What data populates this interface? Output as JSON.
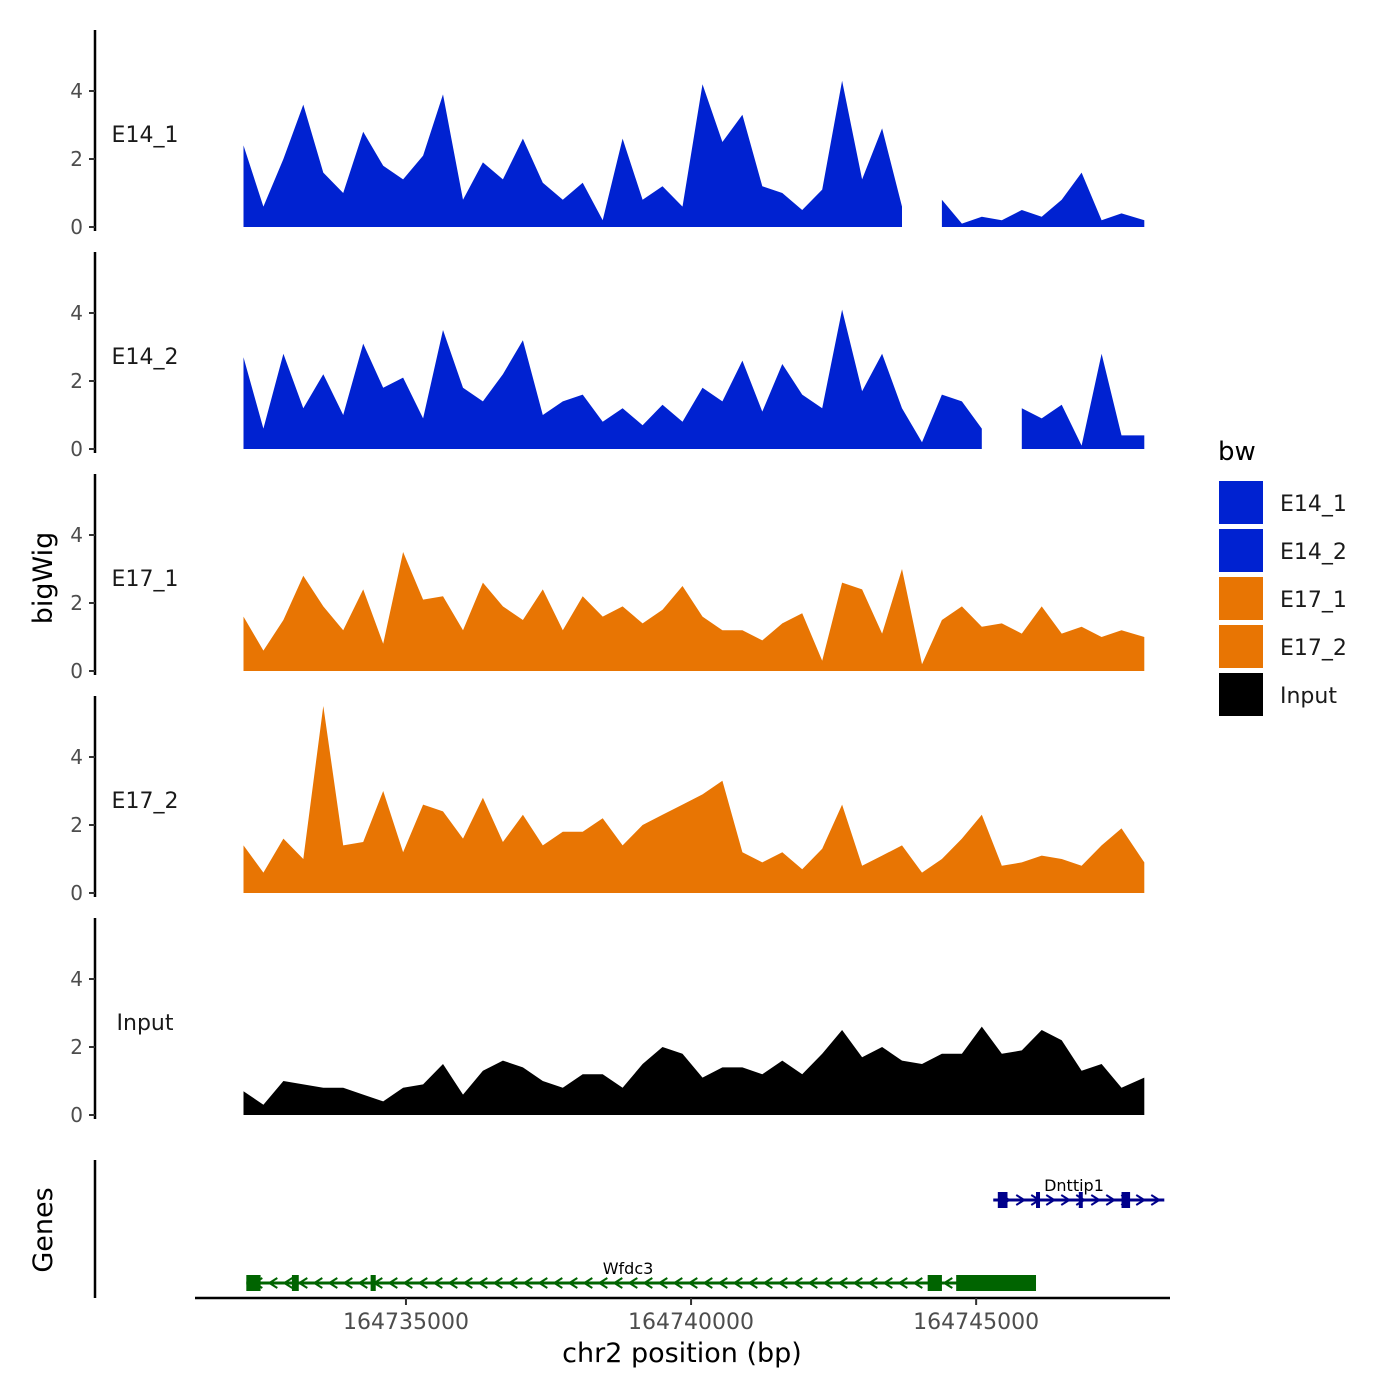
{
  "chart_data": {
    "type": "area",
    "title": "",
    "ylabel": "bigWig",
    "xlabel": "chr2 position (bp)",
    "xlim": [
      164731300,
      164748400
    ],
    "ylim": [
      0,
      5.8
    ],
    "y_ticks": [
      0,
      2,
      4
    ],
    "x_ticks": [
      164735000,
      164740000,
      164745000
    ],
    "x_tick_labels": [
      "164735000",
      "164740000",
      "164745000"
    ],
    "legend": {
      "title": "bw",
      "position": "right",
      "entries": [
        {
          "label": "E14_1",
          "color": "#0022d1"
        },
        {
          "label": "E14_2",
          "color": "#0022d1"
        },
        {
          "label": "E17_1",
          "color": "#e87503"
        },
        {
          "label": "E17_2",
          "color": "#e87503"
        },
        {
          "label": "Input",
          "color": "#000000"
        }
      ]
    },
    "x": [
      164732150,
      164732500,
      164732850,
      164733200,
      164733550,
      164733900,
      164734250,
      164734600,
      164734950,
      164735300,
      164735650,
      164736000,
      164736350,
      164736700,
      164737050,
      164737400,
      164737750,
      164738100,
      164738450,
      164738800,
      164739150,
      164739500,
      164739850,
      164740200,
      164740550,
      164740900,
      164741250,
      164741600,
      164741950,
      164742300,
      164742650,
      164743000,
      164743350,
      164743700,
      164744050,
      164744400,
      164744750,
      164745100,
      164745450,
      164745800,
      164746150,
      164746500,
      164746850,
      164747200,
      164747550,
      164747950
    ],
    "series": [
      {
        "name": "E14_1",
        "values": [
          2.4,
          0.6,
          2.0,
          3.6,
          1.6,
          1.0,
          2.8,
          1.8,
          1.4,
          2.1,
          3.9,
          0.8,
          1.9,
          1.4,
          2.6,
          1.3,
          0.8,
          1.3,
          0.2,
          2.6,
          0.8,
          1.2,
          0.6,
          4.2,
          2.5,
          3.3,
          1.2,
          1.0,
          0.5,
          1.1,
          4.3,
          1.4,
          2.9,
          0.6,
          null,
          0.8,
          0.1,
          0.3,
          0.2,
          0.5,
          0.3,
          0.8,
          1.6,
          0.2,
          0.4,
          0.2
        ]
      },
      {
        "name": "E14_2",
        "values": [
          2.7,
          0.6,
          2.8,
          1.2,
          2.2,
          1.0,
          3.1,
          1.8,
          2.1,
          0.9,
          3.5,
          1.8,
          1.4,
          2.2,
          3.2,
          1.0,
          1.4,
          1.6,
          0.8,
          1.2,
          0.7,
          1.3,
          0.8,
          1.8,
          1.4,
          2.6,
          1.1,
          2.5,
          1.6,
          1.2,
          4.1,
          1.7,
          2.8,
          1.2,
          0.2,
          1.6,
          1.4,
          0.6,
          null,
          1.2,
          0.9,
          1.3,
          0.1,
          2.8,
          0.4,
          0.4
        ]
      },
      {
        "name": "E17_1",
        "values": [
          1.6,
          0.6,
          1.5,
          2.8,
          1.9,
          1.2,
          2.4,
          0.8,
          3.5,
          2.1,
          2.2,
          1.2,
          2.6,
          1.9,
          1.5,
          2.4,
          1.2,
          2.2,
          1.6,
          1.9,
          1.4,
          1.8,
          2.5,
          1.6,
          1.2,
          1.2,
          0.9,
          1.4,
          1.7,
          0.3,
          2.6,
          2.4,
          1.1,
          3.0,
          0.2,
          1.5,
          1.9,
          1.3,
          1.4,
          1.1,
          1.9,
          1.1,
          1.3,
          1.0,
          1.2,
          1.0
        ]
      },
      {
        "name": "E17_2",
        "values": [
          1.4,
          0.6,
          1.6,
          1.0,
          5.5,
          1.4,
          1.5,
          3.0,
          1.2,
          2.6,
          2.4,
          1.6,
          2.8,
          1.5,
          2.3,
          1.4,
          1.8,
          1.8,
          2.2,
          1.4,
          2.0,
          2.3,
          2.6,
          2.9,
          3.3,
          1.2,
          0.9,
          1.2,
          0.7,
          1.3,
          2.6,
          0.8,
          1.1,
          1.4,
          0.6,
          1.0,
          1.6,
          2.3,
          0.8,
          0.9,
          1.1,
          1.0,
          0.8,
          1.4,
          1.9,
          0.9
        ]
      },
      {
        "name": "Input",
        "values": [
          0.7,
          0.3,
          1.0,
          0.9,
          0.8,
          0.8,
          0.6,
          0.4,
          0.8,
          0.9,
          1.5,
          0.6,
          1.3,
          1.6,
          1.4,
          1.0,
          0.8,
          1.2,
          1.2,
          0.8,
          1.5,
          2.0,
          1.8,
          1.1,
          1.4,
          1.4,
          1.2,
          1.6,
          1.2,
          1.8,
          2.5,
          1.7,
          2.0,
          1.6,
          1.5,
          1.8,
          1.8,
          2.6,
          1.8,
          1.9,
          2.5,
          2.2,
          1.3,
          1.5,
          0.8,
          1.1
        ]
      }
    ],
    "genes": [
      {
        "name": "Wfdc3",
        "strand": "-",
        "color": "#006400",
        "start": 164732200,
        "end": 164745250,
        "exons": [
          [
            164732200,
            164732450
          ],
          [
            164733000,
            164733120
          ],
          [
            164734380,
            164734470
          ],
          [
            164744150,
            164744400
          ],
          [
            164744650,
            164746050
          ],
          [
            164745150,
            164745250
          ]
        ]
      },
      {
        "name": "Dnttip1",
        "strand": "+",
        "color": "#00008b",
        "start": 164745300,
        "end": 164748300,
        "exons": [
          [
            164745380,
            164745550
          ],
          [
            164746050,
            164746120
          ],
          [
            164746800,
            164746850
          ],
          [
            164747550,
            164747700
          ]
        ]
      }
    ],
    "genes_panel_label": "Genes"
  }
}
